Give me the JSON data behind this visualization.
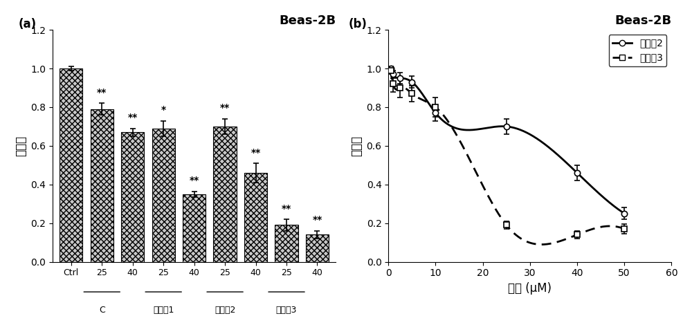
{
  "panel_a": {
    "title": "Beas-2B",
    "ylabel": "存活率",
    "bar_values": [
      1.0,
      0.79,
      0.67,
      0.69,
      0.35,
      0.7,
      0.46,
      0.19,
      0.14
    ],
    "bar_errors": [
      0.01,
      0.03,
      0.02,
      0.04,
      0.015,
      0.04,
      0.05,
      0.03,
      0.02
    ],
    "bar_labels": [
      "Ctrl",
      "25",
      "40",
      "25",
      "40",
      "25",
      "40",
      "25",
      "40"
    ],
    "group_labels": [
      "C",
      "化合物1",
      "化合物2",
      "化合物3"
    ],
    "group_positions": [
      1.5,
      3.5,
      5.5,
      7.5
    ],
    "significance": [
      "",
      "**",
      "**",
      "*",
      "**",
      "**",
      "**",
      "**",
      "**"
    ],
    "ylim": [
      0,
      1.2
    ],
    "yticks": [
      0,
      0.2,
      0.4,
      0.6,
      0.8,
      1.0,
      1.2
    ]
  },
  "panel_b": {
    "title": "Beas-2B",
    "ylabel": "存活率",
    "xlabel": "浓度 (μM)",
    "ylim": [
      0,
      1.2
    ],
    "yticks": [
      0,
      0.2,
      0.4,
      0.6,
      0.8,
      1.0,
      1.2
    ],
    "xlim": [
      0,
      60
    ],
    "xticks": [
      0,
      10,
      20,
      30,
      40,
      50,
      60
    ],
    "compound2_x": [
      0.5,
      1,
      2.5,
      5,
      10,
      25,
      40,
      50
    ],
    "compound2_y": [
      1.0,
      0.97,
      0.95,
      0.93,
      0.77,
      0.7,
      0.46,
      0.25
    ],
    "compound2_err": [
      0.01,
      0.02,
      0.03,
      0.03,
      0.04,
      0.04,
      0.04,
      0.03
    ],
    "compound3_x": [
      0.5,
      1,
      2.5,
      5,
      10,
      25,
      40,
      50
    ],
    "compound3_y": [
      0.99,
      0.92,
      0.9,
      0.87,
      0.8,
      0.19,
      0.14,
      0.17
    ],
    "compound3_err": [
      0.02,
      0.04,
      0.05,
      0.04,
      0.05,
      0.02,
      0.02,
      0.025
    ],
    "legend_labels": [
      "化合物2",
      "化合物3"
    ]
  },
  "background_color": "#f0f0f0",
  "hatch_pattern": "xxxx"
}
